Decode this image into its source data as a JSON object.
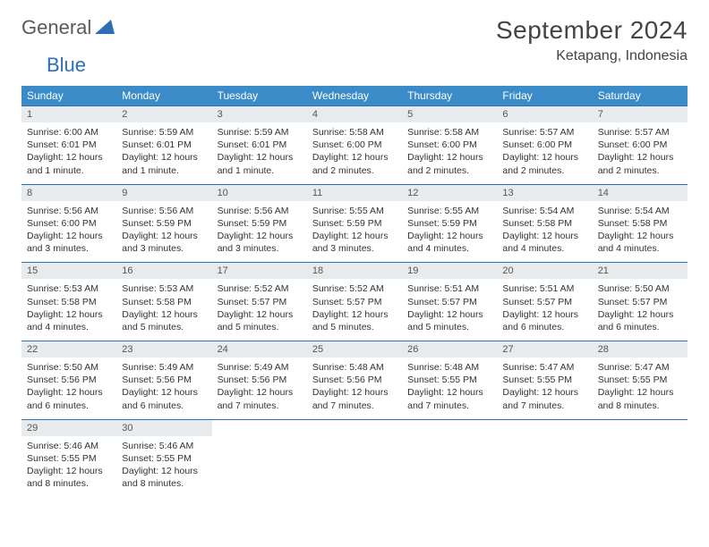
{
  "logo": {
    "part1": "General",
    "part2": "Blue"
  },
  "title": "September 2024",
  "location": "Ketapang, Indonesia",
  "colors": {
    "header_bg": "#3b8bc8",
    "header_text": "#ffffff",
    "daynum_bg": "#e8ebed",
    "border": "#2e6fb4",
    "title_color": "#444444",
    "body_text": "#333333"
  },
  "day_headers": [
    "Sunday",
    "Monday",
    "Tuesday",
    "Wednesday",
    "Thursday",
    "Friday",
    "Saturday"
  ],
  "weeks": [
    [
      {
        "n": "1",
        "sr": "Sunrise: 6:00 AM",
        "ss": "Sunset: 6:01 PM",
        "dl": "Daylight: 12 hours and 1 minute."
      },
      {
        "n": "2",
        "sr": "Sunrise: 5:59 AM",
        "ss": "Sunset: 6:01 PM",
        "dl": "Daylight: 12 hours and 1 minute."
      },
      {
        "n": "3",
        "sr": "Sunrise: 5:59 AM",
        "ss": "Sunset: 6:01 PM",
        "dl": "Daylight: 12 hours and 1 minute."
      },
      {
        "n": "4",
        "sr": "Sunrise: 5:58 AM",
        "ss": "Sunset: 6:00 PM",
        "dl": "Daylight: 12 hours and 2 minutes."
      },
      {
        "n": "5",
        "sr": "Sunrise: 5:58 AM",
        "ss": "Sunset: 6:00 PM",
        "dl": "Daylight: 12 hours and 2 minutes."
      },
      {
        "n": "6",
        "sr": "Sunrise: 5:57 AM",
        "ss": "Sunset: 6:00 PM",
        "dl": "Daylight: 12 hours and 2 minutes."
      },
      {
        "n": "7",
        "sr": "Sunrise: 5:57 AM",
        "ss": "Sunset: 6:00 PM",
        "dl": "Daylight: 12 hours and 2 minutes."
      }
    ],
    [
      {
        "n": "8",
        "sr": "Sunrise: 5:56 AM",
        "ss": "Sunset: 6:00 PM",
        "dl": "Daylight: 12 hours and 3 minutes."
      },
      {
        "n": "9",
        "sr": "Sunrise: 5:56 AM",
        "ss": "Sunset: 5:59 PM",
        "dl": "Daylight: 12 hours and 3 minutes."
      },
      {
        "n": "10",
        "sr": "Sunrise: 5:56 AM",
        "ss": "Sunset: 5:59 PM",
        "dl": "Daylight: 12 hours and 3 minutes."
      },
      {
        "n": "11",
        "sr": "Sunrise: 5:55 AM",
        "ss": "Sunset: 5:59 PM",
        "dl": "Daylight: 12 hours and 3 minutes."
      },
      {
        "n": "12",
        "sr": "Sunrise: 5:55 AM",
        "ss": "Sunset: 5:59 PM",
        "dl": "Daylight: 12 hours and 4 minutes."
      },
      {
        "n": "13",
        "sr": "Sunrise: 5:54 AM",
        "ss": "Sunset: 5:58 PM",
        "dl": "Daylight: 12 hours and 4 minutes."
      },
      {
        "n": "14",
        "sr": "Sunrise: 5:54 AM",
        "ss": "Sunset: 5:58 PM",
        "dl": "Daylight: 12 hours and 4 minutes."
      }
    ],
    [
      {
        "n": "15",
        "sr": "Sunrise: 5:53 AM",
        "ss": "Sunset: 5:58 PM",
        "dl": "Daylight: 12 hours and 4 minutes."
      },
      {
        "n": "16",
        "sr": "Sunrise: 5:53 AM",
        "ss": "Sunset: 5:58 PM",
        "dl": "Daylight: 12 hours and 5 minutes."
      },
      {
        "n": "17",
        "sr": "Sunrise: 5:52 AM",
        "ss": "Sunset: 5:57 PM",
        "dl": "Daylight: 12 hours and 5 minutes."
      },
      {
        "n": "18",
        "sr": "Sunrise: 5:52 AM",
        "ss": "Sunset: 5:57 PM",
        "dl": "Daylight: 12 hours and 5 minutes."
      },
      {
        "n": "19",
        "sr": "Sunrise: 5:51 AM",
        "ss": "Sunset: 5:57 PM",
        "dl": "Daylight: 12 hours and 5 minutes."
      },
      {
        "n": "20",
        "sr": "Sunrise: 5:51 AM",
        "ss": "Sunset: 5:57 PM",
        "dl": "Daylight: 12 hours and 6 minutes."
      },
      {
        "n": "21",
        "sr": "Sunrise: 5:50 AM",
        "ss": "Sunset: 5:57 PM",
        "dl": "Daylight: 12 hours and 6 minutes."
      }
    ],
    [
      {
        "n": "22",
        "sr": "Sunrise: 5:50 AM",
        "ss": "Sunset: 5:56 PM",
        "dl": "Daylight: 12 hours and 6 minutes."
      },
      {
        "n": "23",
        "sr": "Sunrise: 5:49 AM",
        "ss": "Sunset: 5:56 PM",
        "dl": "Daylight: 12 hours and 6 minutes."
      },
      {
        "n": "24",
        "sr": "Sunrise: 5:49 AM",
        "ss": "Sunset: 5:56 PM",
        "dl": "Daylight: 12 hours and 7 minutes."
      },
      {
        "n": "25",
        "sr": "Sunrise: 5:48 AM",
        "ss": "Sunset: 5:56 PM",
        "dl": "Daylight: 12 hours and 7 minutes."
      },
      {
        "n": "26",
        "sr": "Sunrise: 5:48 AM",
        "ss": "Sunset: 5:55 PM",
        "dl": "Daylight: 12 hours and 7 minutes."
      },
      {
        "n": "27",
        "sr": "Sunrise: 5:47 AM",
        "ss": "Sunset: 5:55 PM",
        "dl": "Daylight: 12 hours and 7 minutes."
      },
      {
        "n": "28",
        "sr": "Sunrise: 5:47 AM",
        "ss": "Sunset: 5:55 PM",
        "dl": "Daylight: 12 hours and 8 minutes."
      }
    ],
    [
      {
        "n": "29",
        "sr": "Sunrise: 5:46 AM",
        "ss": "Sunset: 5:55 PM",
        "dl": "Daylight: 12 hours and 8 minutes."
      },
      {
        "n": "30",
        "sr": "Sunrise: 5:46 AM",
        "ss": "Sunset: 5:55 PM",
        "dl": "Daylight: 12 hours and 8 minutes."
      },
      null,
      null,
      null,
      null,
      null
    ]
  ]
}
